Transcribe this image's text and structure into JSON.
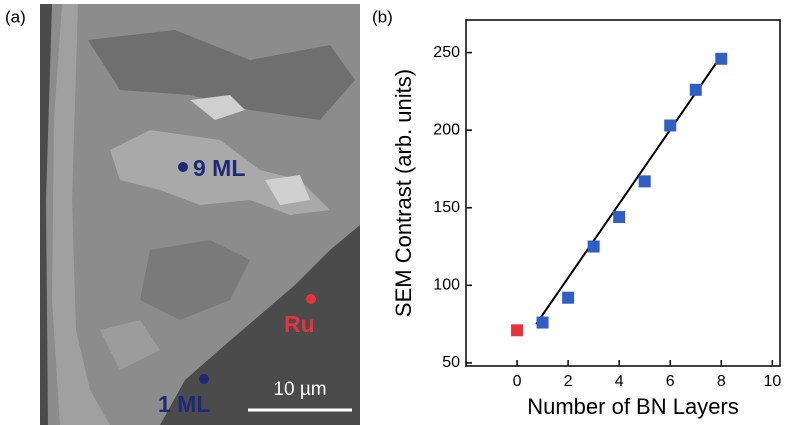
{
  "panel_a": {
    "label": "(a)",
    "annotations": [
      "9 ML",
      "1 ML",
      "Ru"
    ],
    "scale_bar": "10 µm"
  },
  "chart_data": {
    "type": "scatter",
    "panel_label": "(b)",
    "xlabel": "Number of BN Layers",
    "ylabel": "SEM Contrast (arb. units)",
    "xlim": [
      -2,
      10.3
    ],
    "ylim": [
      48,
      271
    ],
    "xticks": [
      0,
      2,
      4,
      6,
      8,
      10
    ],
    "yticks": [
      50,
      100,
      150,
      200,
      250
    ],
    "series": [
      {
        "color": "#e8323c",
        "x": [
          0
        ],
        "values": [
          71
        ]
      },
      {
        "color": "#2f5fc4",
        "x": [
          1,
          2,
          3,
          4,
          5,
          6,
          7,
          8
        ],
        "values": [
          76,
          92,
          125,
          144,
          167,
          203,
          226,
          246
        ]
      }
    ],
    "fit": {
      "color": "#000000",
      "x": [
        0.75,
        8
      ],
      "values": [
        75,
        248
      ]
    }
  }
}
